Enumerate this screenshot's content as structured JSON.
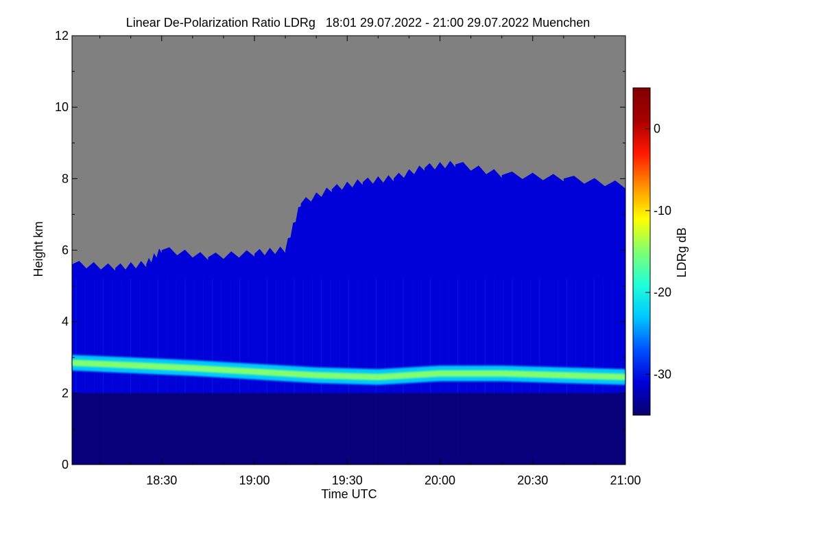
{
  "chart_data": {
    "type": "heatmap",
    "title": "Linear De-Polarization Ratio LDRg   18:01 29.07.2022 - 21:00 29.07.2022 Muenchen",
    "xlabel": "Time UTC",
    "ylabel": "Height km",
    "colorbar_label": "LDRg dB",
    "xlim": [
      "18:01",
      "21:00"
    ],
    "x_tick_labels": [
      "18:30",
      "19:00",
      "19:30",
      "20:00",
      "20:30",
      "21:00"
    ],
    "ylim": [
      0,
      12
    ],
    "y_tick_labels": [
      "0",
      "2",
      "4",
      "6",
      "8",
      "10",
      "12"
    ],
    "colorbar_range": [
      -35,
      5
    ],
    "colorbar_tick_labels": [
      "0",
      "-10",
      "-20",
      "-30"
    ],
    "colormap": [
      "#08006a",
      "#0000d8",
      "#0050ff",
      "#00c8ff",
      "#20ffd8",
      "#80ff70",
      "#ffff00",
      "#ff9000",
      "#ff1800",
      "#a80000",
      "#800000"
    ],
    "no_data_color": "#808080",
    "signal_top_km": [
      [
        "18:01",
        5.6
      ],
      [
        "18:15",
        5.5
      ],
      [
        "18:25",
        5.6
      ],
      [
        "18:30",
        6.0
      ],
      [
        "18:45",
        5.8
      ],
      [
        "19:00",
        5.9
      ],
      [
        "19:10",
        6.0
      ],
      [
        "19:15",
        7.3
      ],
      [
        "19:25",
        7.7
      ],
      [
        "19:35",
        7.9
      ],
      [
        "19:45",
        8.0
      ],
      [
        "19:55",
        8.3
      ],
      [
        "20:05",
        8.4
      ],
      [
        "20:20",
        8.1
      ],
      [
        "20:40",
        8.0
      ],
      [
        "21:00",
        7.8
      ]
    ],
    "depolarization_layer_km": [
      [
        "18:01",
        2.85
      ],
      [
        "18:20",
        2.78
      ],
      [
        "18:40",
        2.7
      ],
      [
        "19:00",
        2.6
      ],
      [
        "19:20",
        2.5
      ],
      [
        "19:40",
        2.45
      ],
      [
        "20:00",
        2.55
      ],
      [
        "20:20",
        2.55
      ],
      [
        "20:40",
        2.5
      ],
      [
        "21:00",
        2.45
      ]
    ],
    "depolarization_layer_dB": -16,
    "background_dB": -31,
    "boundary_layer_top_km": 2.0,
    "boundary_layer_dB": -34
  }
}
